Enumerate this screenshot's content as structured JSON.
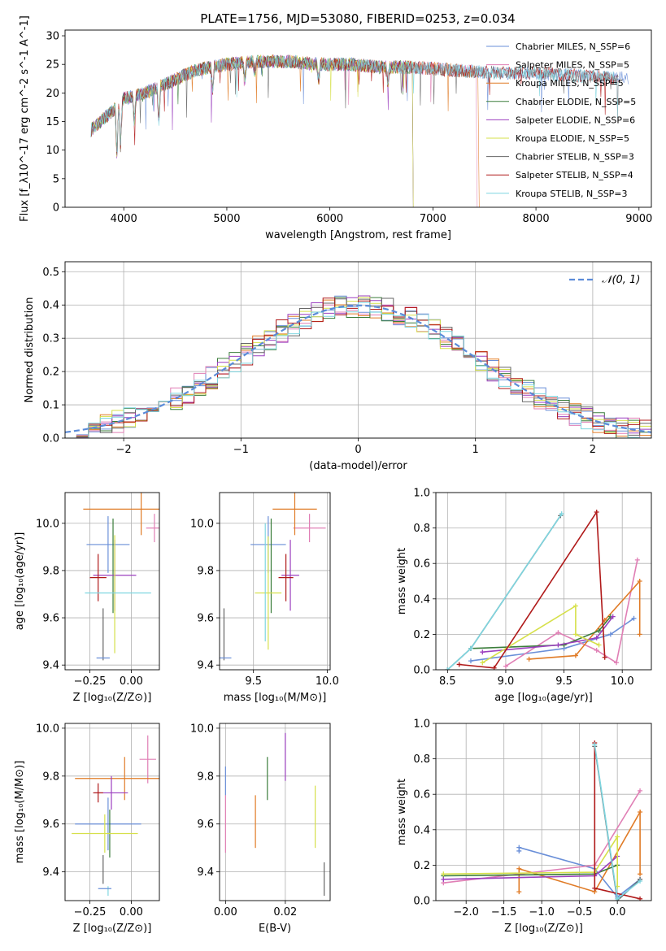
{
  "figure_title": "PLATE=1756, MJD=53080, FIBERID=0253, z=0.034",
  "colors": [
    "#6a8fd8",
    "#e07fb5",
    "#e07b26",
    "#3b7d3b",
    "#9b3fbf",
    "#d6e04a",
    "#666666",
    "#b01a1a",
    "#7ed6e0"
  ],
  "chart_data": [
    {
      "type": "line",
      "title": "PLATE=1756, MJD=53080, FIBERID=0253, z=0.034",
      "xlabel": "wavelength [Angstrom, rest frame]",
      "ylabel": "Flux [f_λ10^-17 erg cm^-2 s^-1 A^-1]",
      "xlim": [
        3430,
        9120
      ],
      "ylim": [
        0,
        31
      ],
      "xticks": [
        "4000",
        "5000",
        "6000",
        "7000",
        "8000",
        "9000"
      ],
      "yticks": [
        "0",
        "5",
        "10",
        "15",
        "20",
        "25",
        "30"
      ],
      "legend_location": "top-right",
      "series": [
        {
          "name": "Chabrier MILES, N_SSP=6",
          "x_range": [
            3680,
            8900
          ]
        },
        {
          "name": "Salpeter MILES, N_SSP=5",
          "x_range": [
            3680,
            7420
          ]
        },
        {
          "name": "Kroupa MILES, N_SSP=5",
          "x_range": [
            3680,
            7440
          ]
        },
        {
          "name": "Chabrier ELODIE, N_SSP=5",
          "x_range": [
            3680,
            6800
          ]
        },
        {
          "name": "Salpeter ELODIE, N_SSP=6",
          "x_range": [
            3680,
            6800
          ]
        },
        {
          "name": "Kroupa ELODIE, N_SSP=5",
          "x_range": [
            3680,
            6800
          ]
        },
        {
          "name": "Chabrier STELIB, N_SSP=3",
          "x_range": [
            3680,
            8800
          ]
        },
        {
          "name": "Salpeter STELIB, N_SSP=4",
          "x_range": [
            3680,
            8800
          ]
        },
        {
          "name": "Kroupa STELIB, N_SSP=3",
          "x_range": [
            3680,
            8800
          ]
        }
      ],
      "continuum_points": [
        [
          3680,
          13.5
        ],
        [
          3900,
          17
        ],
        [
          4000,
          19
        ],
        [
          4200,
          20
        ],
        [
          4400,
          21.5
        ],
        [
          4700,
          24
        ],
        [
          5000,
          25
        ],
        [
          5300,
          25.5
        ],
        [
          5600,
          25.5
        ],
        [
          5900,
          25
        ],
        [
          6200,
          25
        ],
        [
          6500,
          24.5
        ],
        [
          6800,
          24.5
        ],
        [
          7200,
          24
        ],
        [
          7600,
          23.5
        ],
        [
          8000,
          23.5
        ],
        [
          8400,
          23
        ],
        [
          8900,
          22.5
        ]
      ]
    },
    {
      "type": "line",
      "xlabel": "(data-model)/error",
      "ylabel": "Normed distribution",
      "xlim": [
        -2.5,
        2.5
      ],
      "ylim": [
        0,
        0.53
      ],
      "xticks": [
        "−2",
        "−1",
        "0",
        "1",
        "2"
      ],
      "yticks": [
        "0.0",
        "0.1",
        "0.2",
        "0.3",
        "0.4",
        "0.5"
      ],
      "reference_curve": "N(0,1)",
      "reference_label": "𝒩(0, 1)",
      "histogram_bin_width": 0.1
    },
    {
      "type": "scatter",
      "xlabel": "Z [log₁₀(Z/Z⊙)]",
      "ylabel": "age  [log₁₀(age/yr)]",
      "xlim": [
        -0.4,
        0.17
      ],
      "ylim": [
        9.38,
        10.13
      ],
      "xticks": [
        "−0.25",
        "0.00"
      ],
      "yticks": [
        "9.4",
        "9.6",
        "9.8",
        "10.0"
      ],
      "points": [
        {
          "x": -0.14,
          "xerr": 0.13,
          "y": 9.91,
          "yerr": 0.12
        },
        {
          "x": 0.14,
          "xerr": 0.05,
          "y": 9.98,
          "yerr": 0.06
        },
        {
          "x": 0.06,
          "xerr": 0.35,
          "y": 10.06,
          "yerr": 0.11
        },
        {
          "x": -0.11,
          "xerr": 0.0,
          "y": 9.82,
          "yerr": 0.2
        },
        {
          "x": -0.1,
          "xerr": 0.13,
          "y": 9.78,
          "yerr": 0.15
        },
        {
          "x": -0.1,
          "xerr": 0.0,
          "y": 9.7,
          "yerr": 0.25
        },
        {
          "x": -0.17,
          "xerr": 0.0,
          "y": 9.53,
          "yerr": 0.11
        },
        {
          "x": -0.2,
          "xerr": 0.05,
          "y": 9.77,
          "yerr": 0.1
        },
        {
          "x": -0.08,
          "xerr": 0.2,
          "y": 9.705,
          "yerr": 0.0
        },
        {
          "x": -0.17,
          "xerr": 0.04,
          "y": 9.43,
          "yerr": 0.0
        }
      ]
    },
    {
      "type": "scatter",
      "xlabel": "mass [log₁₀(M/M⊙)]",
      "xlim": [
        9.27,
        10.02
      ],
      "ylim": [
        9.38,
        10.13
      ],
      "xticks": [
        "9.5",
        "10.0"
      ],
      "yticks": [
        "9.4",
        "9.6",
        "9.8",
        "10.0"
      ],
      "points": [
        {
          "x": 9.6,
          "xerr": 0.12,
          "y": 9.91,
          "yerr": 0.12
        },
        {
          "x": 9.88,
          "xerr": 0.11,
          "y": 9.98,
          "yerr": 0.06
        },
        {
          "x": 9.78,
          "xerr": 0.15,
          "y": 10.06,
          "yerr": 0.11
        },
        {
          "x": 9.62,
          "xerr": 0.0,
          "y": 9.82,
          "yerr": 0.2
        },
        {
          "x": 9.75,
          "xerr": 0.06,
          "y": 9.78,
          "yerr": 0.15
        },
        {
          "x": 9.6,
          "xerr": 0.09,
          "y": 9.705,
          "yerr": 0.24
        },
        {
          "x": 9.3,
          "xerr": 0.0,
          "y": 9.53,
          "yerr": 0.11
        },
        {
          "x": 9.72,
          "xerr": 0.05,
          "y": 9.77,
          "yerr": 0.1
        },
        {
          "x": 9.58,
          "xerr": 0.0,
          "y": 9.75,
          "yerr": 0.25
        },
        {
          "x": 9.31,
          "xerr": 0.04,
          "y": 9.43,
          "yerr": 0.0
        }
      ]
    },
    {
      "type": "line",
      "xlabel": "age  [log₁₀(age/yr)]",
      "ylabel": "mass weight",
      "xlim": [
        8.4,
        10.25
      ],
      "ylim": [
        0,
        1
      ],
      "xticks": [
        "8.5",
        "9.0",
        "9.5",
        "10.0"
      ],
      "yticks": [
        "0.0",
        "0.2",
        "0.4",
        "0.6",
        "0.8",
        "1.0"
      ],
      "series": [
        {
          "x": [
            8.7,
            9.5,
            9.9,
            10.1
          ],
          "y": [
            0.05,
            0.12,
            0.2,
            0.29
          ]
        },
        {
          "x": [
            9.0,
            9.45,
            9.78,
            9.95,
            10.13
          ],
          "y": [
            0.02,
            0.21,
            0.11,
            0.04,
            0.62
          ]
        },
        {
          "x": [
            9.2,
            9.6,
            9.85,
            10.15,
            10.15
          ],
          "y": [
            0.06,
            0.08,
            0.28,
            0.5,
            0.2
          ]
        },
        {
          "x": [
            8.7,
            9.5,
            9.8,
            9.9
          ],
          "y": [
            0.12,
            0.14,
            0.22,
            0.3
          ]
        },
        {
          "x": [
            8.8,
            9.45,
            9.78,
            9.92
          ],
          "y": [
            0.1,
            0.14,
            0.18,
            0.3
          ]
        },
        {
          "x": [
            8.8,
            9.6,
            9.6,
            9.8
          ],
          "y": [
            0.04,
            0.36,
            0.2,
            0.14
          ]
        },
        {
          "x": [
            8.5,
            8.7,
            9.47
          ],
          "y": [
            0.0,
            0.12,
            0.87
          ]
        },
        {
          "x": [
            8.6,
            8.9,
            9.78,
            9.85
          ],
          "y": [
            0.03,
            0.01,
            0.89,
            0.07
          ]
        },
        {
          "x": [
            8.5,
            8.7,
            9.48
          ],
          "y": [
            0.0,
            0.12,
            0.88
          ]
        }
      ]
    },
    {
      "type": "scatter",
      "xlabel": "Z [log₁₀(Z/Z⊙)]",
      "ylabel": "mass [log₁₀(M/M⊙)]",
      "xlim": [
        -0.4,
        0.17
      ],
      "ylim": [
        9.28,
        10.02
      ],
      "xticks": [
        "−0.25",
        "0.00"
      ],
      "yticks": [
        "9.4",
        "9.6",
        "9.8",
        "10.0"
      ],
      "points": [
        {
          "x": -0.14,
          "xerr": 0.2,
          "y": 9.6,
          "yerr": 0.11
        },
        {
          "x": 0.1,
          "xerr": 0.05,
          "y": 9.87,
          "yerr": 0.1
        },
        {
          "x": -0.04,
          "xerr": 0.3,
          "y": 9.79,
          "yerr": 0.09
        },
        {
          "x": -0.13,
          "xerr": 0.0,
          "y": 9.56,
          "yerr": 0.1
        },
        {
          "x": -0.12,
          "xerr": 0.1,
          "y": 9.73,
          "yerr": 0.07
        },
        {
          "x": -0.16,
          "xerr": 0.2,
          "y": 9.56,
          "yerr": 0.08
        },
        {
          "x": -0.17,
          "xerr": 0.0,
          "y": 9.41,
          "yerr": 0.06
        },
        {
          "x": -0.2,
          "xerr": 0.03,
          "y": 9.73,
          "yerr": 0.04
        },
        {
          "x": -0.14,
          "xerr": 0.0,
          "y": 9.32,
          "yerr": 0.02
        },
        {
          "x": -0.16,
          "xerr": 0.04,
          "y": 9.33,
          "yerr": 0.0
        }
      ]
    },
    {
      "type": "scatter",
      "xlabel": "E(B-V)",
      "xlim": [
        -0.002,
        0.035
      ],
      "ylim": [
        9.28,
        10.02
      ],
      "xticks": [
        "0.00",
        "0.02"
      ],
      "yticks": [
        "9.4",
        "9.6",
        "9.8",
        "10.0"
      ],
      "points": [
        {
          "x": 0.0,
          "y": 9.78,
          "yerr": 0.06
        },
        {
          "x": 0.0,
          "y": 9.6,
          "yerr": 0.12
        },
        {
          "x": 0.01,
          "y": 9.61,
          "yerr": 0.11
        },
        {
          "x": 0.014,
          "y": 9.79,
          "yerr": 0.09
        },
        {
          "x": 0.02,
          "y": 9.88,
          "yerr": 0.1
        },
        {
          "x": 0.03,
          "y": 9.63,
          "yerr": 0.13
        },
        {
          "x": 0.033,
          "y": 9.37,
          "yerr": 0.07
        }
      ]
    },
    {
      "type": "line",
      "xlabel": "Z [log₁₀(Z/Z⊙)]",
      "ylabel": "mass weight",
      "xlim": [
        -2.4,
        0.45
      ],
      "ylim": [
        0,
        1
      ],
      "xticks": [
        "−2.0",
        "−1.5",
        "−1.0",
        "−0.5",
        "0.0"
      ],
      "yticks": [
        "0.0",
        "0.2",
        "0.4",
        "0.6",
        "0.8",
        "1.0"
      ],
      "series": [
        {
          "x": [
            -1.3,
            -1.3,
            -0.3,
            0.0,
            0.3
          ],
          "y": [
            0.28,
            0.3,
            0.18,
            0.02,
            0.12
          ]
        },
        {
          "x": [
            -2.3,
            -0.3,
            0.3
          ],
          "y": [
            0.1,
            0.2,
            0.62
          ]
        },
        {
          "x": [
            -1.3,
            -1.3,
            -0.3,
            0.3,
            0.3
          ],
          "y": [
            0.05,
            0.18,
            0.05,
            0.5,
            0.15
          ]
        },
        {
          "x": [
            -2.3,
            -0.3,
            0.0
          ],
          "y": [
            0.14,
            0.15,
            0.2
          ]
        },
        {
          "x": [
            -2.3,
            -0.3,
            0.0
          ],
          "y": [
            0.12,
            0.14,
            0.25
          ]
        },
        {
          "x": [
            -2.3,
            -0.3,
            0.0,
            0.0
          ],
          "y": [
            0.15,
            0.16,
            0.36,
            0.08
          ]
        },
        {
          "x": [
            -0.3,
            0.0,
            0.3
          ],
          "y": [
            0.87,
            0.0,
            0.12
          ]
        },
        {
          "x": [
            -0.3,
            -0.3,
            0.3
          ],
          "y": [
            0.89,
            0.07,
            0.01
          ]
        },
        {
          "x": [
            -0.3,
            0.0,
            0.3
          ],
          "y": [
            0.88,
            0.01,
            0.11
          ]
        }
      ]
    }
  ]
}
